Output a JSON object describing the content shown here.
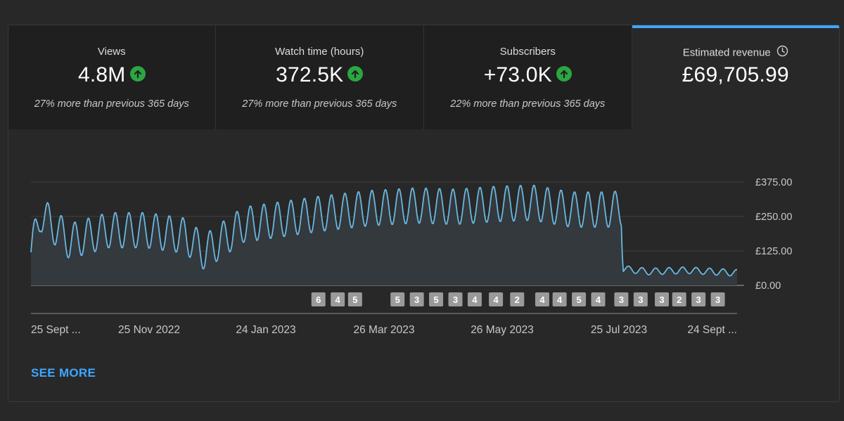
{
  "metrics": [
    {
      "label": "Views",
      "value": "4.8M",
      "trend": "up",
      "subtext": "27% more than previous 365 days"
    },
    {
      "label": "Watch time (hours)",
      "value": "372.5K",
      "trend": "up",
      "subtext": "27% more than previous 365 days"
    },
    {
      "label": "Subscribers",
      "value": "+73.0K",
      "trend": "up",
      "subtext": "22% more than previous 365 days"
    },
    {
      "label": "Estimated revenue",
      "value": "£69,705.99",
      "selected": true
    }
  ],
  "see_more_label": "SEE MORE",
  "colors": {
    "accent": "#3ea6ff",
    "line": "#6ab7e0",
    "positive": "#2ba640"
  },
  "chart_data": {
    "type": "area",
    "x_tick_labels": [
      "25 Sept ...",
      "25 Nov 2022",
      "24 Jan 2023",
      "26 Mar 2023",
      "26 May 2023",
      "25 Jul 2023",
      "24 Sept ..."
    ],
    "y_tick_labels": [
      "£375.00",
      "£250.00",
      "£125.00",
      "£0.00"
    ],
    "y_ticks": [
      375,
      250,
      125,
      0
    ],
    "ylim": [
      0,
      375
    ],
    "keypoints": [
      [
        0,
        120
      ],
      [
        5,
        260
      ],
      [
        20,
        160
      ],
      [
        40,
        200
      ],
      [
        60,
        200
      ],
      [
        80,
        180
      ],
      [
        90,
        120
      ],
      [
        110,
        220
      ],
      [
        130,
        240
      ],
      [
        150,
        260
      ],
      [
        175,
        280
      ],
      [
        200,
        290
      ],
      [
        220,
        285
      ],
      [
        240,
        295
      ],
      [
        260,
        300
      ],
      [
        280,
        275
      ],
      [
        300,
        275
      ],
      [
        306,
        280
      ],
      [
        307,
        60
      ],
      [
        320,
        50
      ],
      [
        340,
        55
      ],
      [
        366,
        45
      ]
    ],
    "period_days": 7,
    "weekly_amplitude": 65,
    "markers": [
      {
        "day": 149,
        "label": "6"
      },
      {
        "day": 159,
        "label": "4"
      },
      {
        "day": 168,
        "label": "5"
      },
      {
        "day": 190,
        "label": "5"
      },
      {
        "day": 200,
        "label": "3"
      },
      {
        "day": 210,
        "label": "5"
      },
      {
        "day": 220,
        "label": "3"
      },
      {
        "day": 230,
        "label": "4"
      },
      {
        "day": 241,
        "label": "4"
      },
      {
        "day": 252,
        "label": "2"
      },
      {
        "day": 265,
        "label": "4"
      },
      {
        "day": 274,
        "label": "4"
      },
      {
        "day": 284,
        "label": "5"
      },
      {
        "day": 294,
        "label": "4"
      },
      {
        "day": 306,
        "label": "3"
      },
      {
        "day": 316,
        "label": "3"
      },
      {
        "day": 327,
        "label": "3"
      },
      {
        "day": 336,
        "label": "2"
      },
      {
        "day": 346,
        "label": "3"
      },
      {
        "day": 356,
        "label": "3"
      }
    ],
    "grid": true
  }
}
